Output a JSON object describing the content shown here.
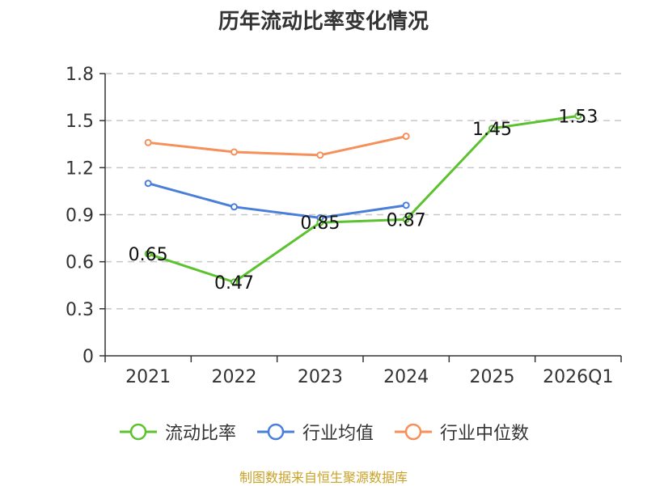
{
  "chart_data": {
    "type": "line",
    "title": "历年流动比率变化情况",
    "categories": [
      "2021",
      "2022",
      "2023",
      "2024",
      "2025",
      "2026Q1"
    ],
    "ylim": [
      0,
      1.8
    ],
    "yticks": [
      0,
      0.3,
      0.6,
      0.9,
      1.2,
      1.5,
      1.8
    ],
    "ytick_labels": [
      "0",
      "0.3",
      "0.6",
      "0.9",
      "1.2",
      "1.5",
      "1.8"
    ],
    "grid": true,
    "legend_position": "bottom",
    "series": [
      {
        "name": "流动比率",
        "color": "#5cc22f",
        "values": [
          0.65,
          0.47,
          0.85,
          0.87,
          1.45,
          1.53
        ],
        "labels": [
          "0.65",
          "0.47",
          "0.85",
          "0.87",
          "1.45",
          "1.53"
        ]
      },
      {
        "name": "行业均值",
        "color": "#4a7fd9",
        "values": [
          1.1,
          0.95,
          0.88,
          0.96,
          null,
          null
        ]
      },
      {
        "name": "行业中位数",
        "color": "#f5905a",
        "values": [
          1.36,
          1.3,
          1.28,
          1.4,
          null,
          null
        ]
      }
    ]
  },
  "source": "制图数据来自恒生聚源数据库"
}
